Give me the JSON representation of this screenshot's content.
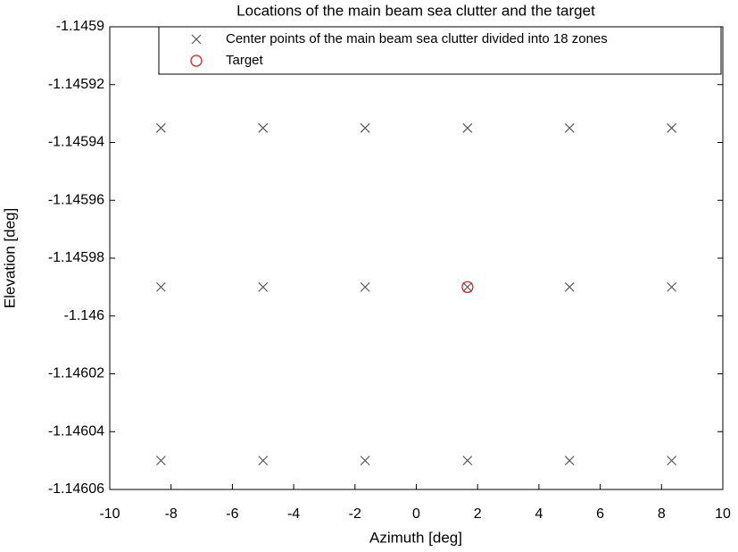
{
  "chart_data": {
    "type": "scatter",
    "title": "Locations of the main beam sea clutter and the target",
    "xlabel": "Azimuth [deg]",
    "ylabel": "Elevation [deg]",
    "xlim": [
      -10,
      10
    ],
    "xticks": [
      -10,
      -8,
      -6,
      -4,
      -2,
      0,
      2,
      4,
      6,
      8,
      10
    ],
    "ylim": [
      -1.14606,
      -1.1459
    ],
    "yticks": [
      -1.14606,
      -1.14604,
      -1.14602,
      -1.146,
      -1.14598,
      -1.14596,
      -1.14594,
      -1.14592,
      -1.1459
    ],
    "grid": false,
    "legend": "upper right",
    "series": [
      {
        "name": "Center points of the main beam sea clutter divided into 18 zones",
        "color": "#555555",
        "marker": "x",
        "x": [
          -8.33,
          -5,
          -1.67,
          1.67,
          5,
          8.33,
          -8.33,
          -5,
          -1.67,
          1.67,
          5,
          8.33,
          -8.33,
          -5,
          -1.67,
          1.67,
          5,
          8.33
        ],
        "y": [
          -1.145935,
          -1.145935,
          -1.145935,
          -1.145935,
          -1.145935,
          -1.145935,
          -1.14599,
          -1.14599,
          -1.14599,
          -1.14599,
          -1.14599,
          -1.14599,
          -1.14605,
          -1.14605,
          -1.14605,
          -1.14605,
          -1.14605,
          -1.14605
        ]
      },
      {
        "name": "Target",
        "color": "#e02020",
        "marker": "o",
        "x": [
          1.67
        ],
        "y": [
          -1.14599
        ]
      }
    ]
  }
}
